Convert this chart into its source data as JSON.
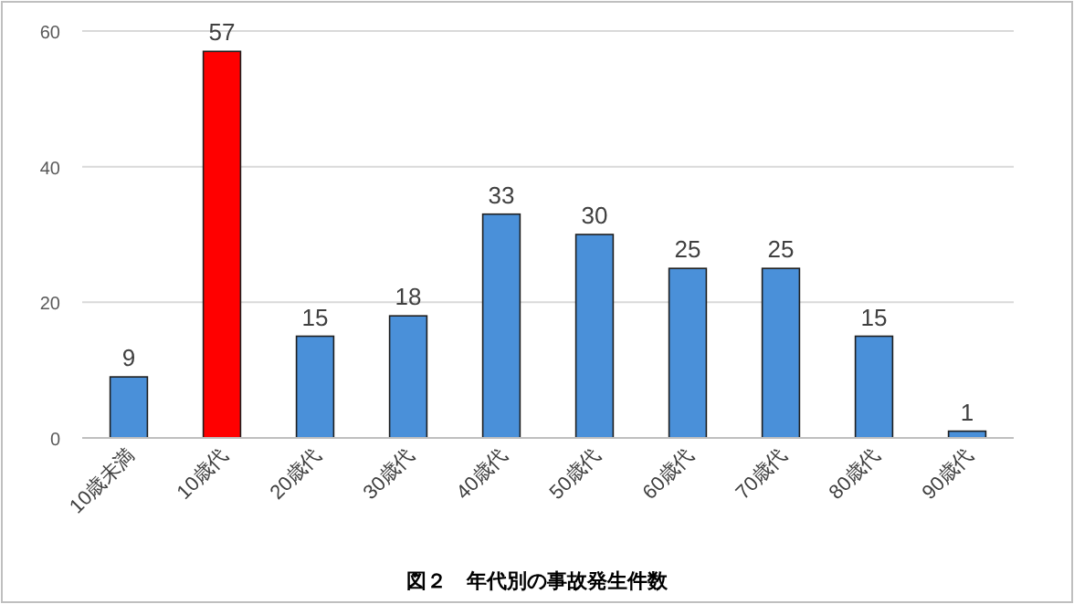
{
  "chart_data": {
    "type": "bar",
    "title": "図２　年代別の事故発生件数",
    "categories": [
      "10歳未満",
      "10歳代",
      "20歳代",
      "30歳代",
      "40歳代",
      "50歳代",
      "60歳代",
      "70歳代",
      "80歳代",
      "90歳代"
    ],
    "values": [
      9,
      57,
      15,
      18,
      33,
      30,
      25,
      25,
      15,
      1
    ],
    "colors": [
      "#4a90d9",
      "#ff0000",
      "#4a90d9",
      "#4a90d9",
      "#4a90d9",
      "#4a90d9",
      "#4a90d9",
      "#4a90d9",
      "#4a90d9",
      "#4a90d9"
    ],
    "ylim": [
      0,
      60
    ],
    "yticks": [
      0,
      20,
      40,
      60
    ],
    "grid": "y",
    "data_labels": true
  }
}
